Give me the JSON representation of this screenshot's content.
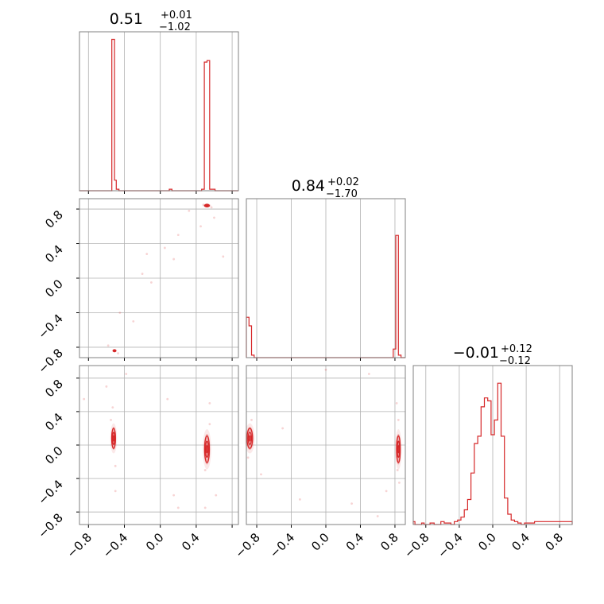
{
  "colors": {
    "accent": "#d62728",
    "grid": "#b0b0b0",
    "frame": "#808080"
  },
  "chart_data": {
    "type": "corner",
    "parameters": 3,
    "grid": true,
    "titles": [
      {
        "value": "0.51",
        "plus": "+0.01",
        "minus": "−1.02"
      },
      {
        "value": "0.84",
        "plus": "+0.02",
        "minus": "−1.70"
      },
      {
        "value": "−0.01",
        "plus": "+0.12",
        "minus": "−0.12"
      }
    ],
    "tick_labels": {
      "x0": [
        "−0.8",
        "−0.4",
        "0.0",
        "0.4"
      ],
      "x1": [
        "−0.8",
        "−0.4",
        "0.0",
        "0.4",
        "0.8"
      ],
      "x2": [
        "−0.8",
        "−0.4",
        "0.0",
        "0.4",
        "0.8"
      ],
      "y1": [
        "0.8",
        "0.4",
        "0.0",
        "−0.4",
        "−0.8"
      ],
      "y2": [
        "0.8",
        "0.4",
        "0.0",
        "−0.4",
        "−0.8"
      ]
    },
    "axis_ranges": {
      "p0": [
        -0.9,
        0.87
      ],
      "p1": [
        -0.92,
        0.92
      ],
      "p2": [
        -0.95,
        0.95
      ]
    },
    "tick_values": [
      -0.8,
      -0.4,
      0.0,
      0.4,
      0.8
    ],
    "histograms": [
      {
        "param": 0,
        "edges": [
          -0.9,
          -0.54,
          -0.51,
          -0.49,
          -0.46,
          0.1,
          0.13,
          0.46,
          0.49,
          0.52,
          0.55,
          0.58,
          0.61,
          0.87
        ],
        "counts": [
          0,
          1.0,
          0.07,
          0.01,
          0,
          0.01,
          0,
          0.01,
          0.85,
          0.86,
          0.01,
          0.01,
          0
        ]
      },
      {
        "param": 1,
        "edges": [
          -0.92,
          -0.89,
          -0.86,
          -0.83,
          0.78,
          0.81,
          0.84,
          0.87,
          0.92
        ],
        "counts": [
          0.33,
          0.26,
          0.02,
          0,
          0.07,
          1.0,
          0.02,
          0
        ],
        "ymax": 1.3
      },
      {
        "param": 2,
        "edges": [
          -0.95,
          -0.93,
          -0.85,
          -0.82,
          -0.75,
          -0.7,
          -0.62,
          -0.58,
          -0.54,
          -0.5,
          -0.46,
          -0.42,
          -0.38,
          -0.34,
          -0.3,
          -0.26,
          -0.22,
          -0.18,
          -0.14,
          -0.1,
          -0.06,
          -0.02,
          0.02,
          0.06,
          0.1,
          0.14,
          0.18,
          0.22,
          0.26,
          0.3,
          0.34,
          0.38,
          0.42,
          0.5,
          0.95
        ],
        "counts": [
          0.02,
          0,
          0.01,
          0,
          0.01,
          0,
          0.02,
          0.01,
          0.01,
          0,
          0.02,
          0.03,
          0.05,
          0.1,
          0.17,
          0.35,
          0.55,
          0.6,
          0.8,
          0.86,
          0.84,
          0.61,
          0.71,
          0.96,
          0.6,
          0.18,
          0.07,
          0.03,
          0.02,
          0.01,
          0,
          0.01,
          0.01,
          0.02
        ],
        "ymax": 1.08
      }
    ],
    "pairs": [
      {
        "x_param": 0,
        "y_param": 1,
        "clusters": [
          {
            "cx": 0.52,
            "cy": 0.84,
            "rx": 0.025,
            "ry": 0.015
          },
          {
            "cx": -0.51,
            "cy": -0.84,
            "rx": 0.015,
            "ry": 0.012
          }
        ],
        "scatter": [
          [
            0.48,
            0.85
          ],
          [
            0.57,
            0.82
          ],
          [
            0.32,
            0.78
          ],
          [
            -0.15,
            0.28
          ],
          [
            -0.58,
            -0.78
          ],
          [
            -0.47,
            -0.87
          ],
          [
            0.15,
            0.22
          ],
          [
            0.05,
            0.35
          ],
          [
            -0.1,
            -0.05
          ],
          [
            -0.3,
            -0.5
          ],
          [
            0.6,
            0.7
          ],
          [
            0.45,
            0.6
          ],
          [
            -0.2,
            0.05
          ],
          [
            0.2,
            0.5
          ],
          [
            -0.45,
            -0.4
          ],
          [
            0.7,
            0.25
          ]
        ]
      },
      {
        "x_param": 0,
        "y_param": 2,
        "clusters": [
          {
            "cx": -0.52,
            "cy": 0.08,
            "rx": 0.02,
            "ry": 0.12
          },
          {
            "cx": 0.52,
            "cy": -0.05,
            "rx": 0.025,
            "ry": 0.16
          }
        ],
        "scatter": [
          [
            -0.55,
            0.3
          ],
          [
            -0.5,
            -0.25
          ],
          [
            -0.53,
            0.45
          ],
          [
            0.55,
            0.25
          ],
          [
            0.5,
            -0.3
          ],
          [
            -0.38,
            0.85
          ],
          [
            0.08,
            0.55
          ],
          [
            0.15,
            -0.6
          ],
          [
            0.5,
            -0.75
          ],
          [
            -0.6,
            0.7
          ],
          [
            0.55,
            0.5
          ],
          [
            -0.5,
            -0.55
          ],
          [
            0.2,
            -0.75
          ],
          [
            0.62,
            -0.6
          ],
          [
            -0.85,
            0.55
          ]
        ]
      },
      {
        "x_param": 1,
        "y_param": 2,
        "clusters": [
          {
            "cx": -0.88,
            "cy": 0.08,
            "rx": 0.03,
            "ry": 0.12
          },
          {
            "cx": 0.84,
            "cy": -0.05,
            "rx": 0.02,
            "ry": 0.16
          }
        ],
        "scatter": [
          [
            -0.9,
            -0.15
          ],
          [
            -0.86,
            0.3
          ],
          [
            0.84,
            0.3
          ],
          [
            0.83,
            -0.3
          ],
          [
            -0.5,
            0.2
          ],
          [
            0.0,
            0.9
          ],
          [
            0.3,
            -0.7
          ],
          [
            0.7,
            -0.55
          ],
          [
            -0.3,
            -0.65
          ],
          [
            0.5,
            0.85
          ],
          [
            -0.75,
            -0.35
          ],
          [
            0.82,
            0.5
          ],
          [
            0.6,
            -0.85
          ],
          [
            0.85,
            -0.45
          ]
        ]
      }
    ]
  }
}
